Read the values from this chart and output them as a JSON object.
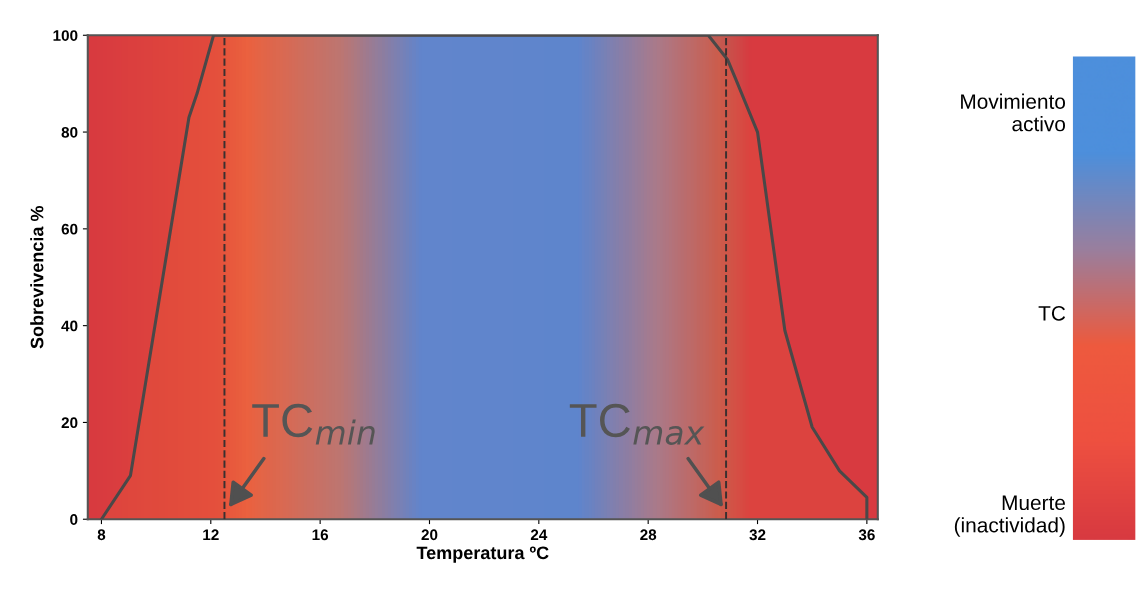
{
  "chart_data": {
    "type": "area",
    "xlabel": "Temperatura ºC",
    "ylabel": "Sobrevivencia %",
    "x": [
      8.0,
      9.06,
      11.2,
      11.5,
      12.1,
      30.2,
      30.9,
      31.2,
      32.0,
      33.0,
      34.0,
      35.0,
      36.0,
      36.0
    ],
    "series": [
      {
        "color": "#f26b3a",
        "values": [
          0,
          9,
          83,
          88,
          100,
          100,
          95,
          91,
          80,
          39,
          19,
          10,
          4.5,
          0
        ]
      }
    ],
    "xlim": [
      7.5,
      36.4
    ],
    "ylim": [
      0,
      100
    ],
    "xticks": [
      8,
      12,
      16,
      20,
      24,
      28,
      32,
      36
    ],
    "yticks": [
      0,
      20,
      40,
      60,
      80,
      100
    ],
    "grid": false,
    "marker": "none",
    "line_style": "solid",
    "ref_lines": [
      {
        "axis": "x",
        "value": 12.5,
        "label": null,
        "color": "#3a3030",
        "line_style": "dashed"
      },
      {
        "axis": "x",
        "value": 30.85,
        "label": null,
        "color": "#3a3030",
        "line_style": "dashed"
      }
    ],
    "annotations": [
      {
        "text": "TC$_{min}$",
        "x": 12.6,
        "y": 2
      },
      {
        "text": "TC$_{max}$",
        "x": 30.8,
        "y": 2
      },
      "Movimiento\nactivo",
      "TC",
      "Muerte\n(inactividad)"
    ]
  }
}
